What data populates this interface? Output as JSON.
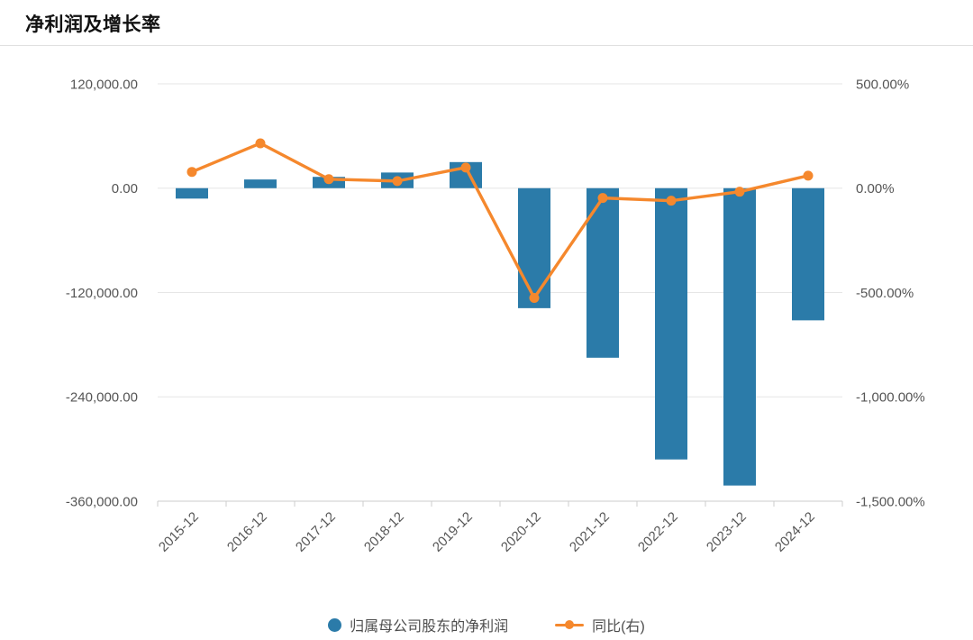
{
  "page": {
    "title": "净利润及增长率"
  },
  "legend": {
    "items": [
      {
        "label": "归属母公司股东的净利润",
        "type": "bar",
        "color": "#2b7ba9"
      },
      {
        "label": "同比(右)",
        "type": "line",
        "color": "#f5882d"
      }
    ]
  },
  "colors": {
    "bar": "#2b7ba9",
    "line": "#f5882d",
    "grid": "#e6e6e6",
    "axis_line": "#cccccc",
    "axis_label": "#555555"
  },
  "chart_data": {
    "type": "bar",
    "title": "净利润及增长率",
    "categories": [
      "2015-12",
      "2016-12",
      "2017-12",
      "2018-12",
      "2019-12",
      "2020-12",
      "2021-12",
      "2022-12",
      "2023-12",
      "2024-12"
    ],
    "series": [
      {
        "name": "归属母公司股东的净利润",
        "type": "bar",
        "axis": "left",
        "color": "#2b7ba9",
        "values": [
          -12000,
          10000,
          13000,
          18000,
          30000,
          -138000,
          -195000,
          -312000,
          -342000,
          -152000
        ]
      },
      {
        "name": "同比(右)",
        "type": "line",
        "axis": "right",
        "color": "#f5882d",
        "values": [
          78,
          215,
          43,
          34,
          99,
          -526,
          -47,
          -60,
          -17,
          60
        ]
      }
    ],
    "left_axis": {
      "min": -360000,
      "max": 120000,
      "ticks": [
        {
          "label": "120,000.00",
          "value": 120000
        },
        {
          "label": "0.00",
          "value": 0
        },
        {
          "label": "-120,000.00",
          "value": -120000
        },
        {
          "label": "-240,000.00",
          "value": -240000
        },
        {
          "label": "-360,000.00",
          "value": -360000
        }
      ]
    },
    "right_axis": {
      "min": -1500,
      "max": 500,
      "ticks": [
        {
          "label": "500.00%",
          "value": 500
        },
        {
          "label": "0.00%",
          "value": 0
        },
        {
          "label": "-500.00%",
          "value": -500
        },
        {
          "label": "-1,000.00%",
          "value": -1000
        },
        {
          "label": "-1,500.00%",
          "value": -1500
        }
      ]
    },
    "grid": true,
    "legend_position": "bottom"
  }
}
